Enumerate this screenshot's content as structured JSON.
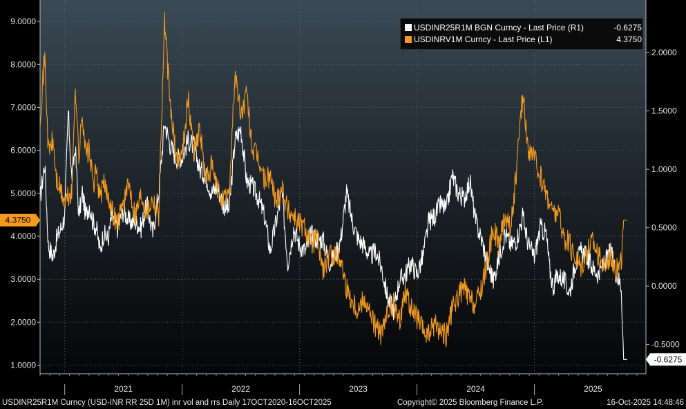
{
  "colors": {
    "white_series": "#ffffff",
    "orange_series": "#f39a1f",
    "grid": "#3a3a3a"
  },
  "legend": {
    "entries": [
      {
        "label": "USDINR25R1M BGN Curncy - Last Price (R1)",
        "value": "-0.6275",
        "color": "#ffffff"
      },
      {
        "label": "USDINRV1M Curncy - Last Price (L1)",
        "value": "4.3750",
        "color": "#f39a1f"
      }
    ]
  },
  "footer": {
    "left": "USDINR25R1M Curncy (USD-INR RR 25D 1M) inr vol and rrs Daily 17OCT2020-16OCT2025",
    "middle": "Copyright© 2025 Bloomberg Finance L.P.",
    "right": "16-Oct-2025 14:48:46"
  },
  "chart_data": {
    "type": "line",
    "title": "USDINR25R1M Curncy (USD-INR RR 25D 1M) inr vol and rrs",
    "date_range": "17OCT2020-16OCT2025",
    "x_years": [
      "2021",
      "2022",
      "2023",
      "2024",
      "2025"
    ],
    "left_axis": {
      "ticks": [
        "1.0000",
        "2.0000",
        "3.0000",
        "4.0000",
        "5.0000",
        "6.0000",
        "7.0000",
        "8.0000",
        "9.0000"
      ],
      "ylim": [
        0.8,
        9.5
      ],
      "last_value_label": "4.3750"
    },
    "right_axis": {
      "ticks": [
        "-0.5000",
        "0.0000",
        "0.5000",
        "1.0000",
        "1.5000",
        "2.0000"
      ],
      "ylim": [
        -0.75,
        2.45
      ],
      "last_value_label": "-0.6275"
    },
    "series": [
      {
        "name": "USDINRV1M Curncy - Last Price (L1)",
        "axis": "left",
        "x": [
          2020.79,
          2020.83,
          2020.86,
          2020.9,
          2020.93,
          2020.97,
          2021.0,
          2021.03,
          2021.06,
          2021.09,
          2021.12,
          2021.15,
          2021.18,
          2021.21,
          2021.24,
          2021.27,
          2021.3,
          2021.33,
          2021.37,
          2021.4,
          2021.45,
          2021.5,
          2021.55,
          2021.6,
          2021.65,
          2021.7,
          2021.75,
          2021.8,
          2021.85,
          2021.9,
          2021.95,
          2022.0,
          2022.05,
          2022.1,
          2022.15,
          2022.2,
          2022.25,
          2022.3,
          2022.35,
          2022.4,
          2022.45,
          2022.5,
          2022.55,
          2022.6,
          2022.65,
          2022.7,
          2022.75,
          2022.8,
          2022.85,
          2022.9,
          2022.95,
          2023.0,
          2023.05,
          2023.1,
          2023.15,
          2023.2,
          2023.25,
          2023.3,
          2023.35,
          2023.4,
          2023.45,
          2023.5,
          2023.55,
          2023.6,
          2023.65,
          2023.7,
          2023.75,
          2023.8,
          2023.85,
          2023.9,
          2023.95,
          2024.0,
          2024.05,
          2024.1,
          2024.15,
          2024.2,
          2024.25,
          2024.3,
          2024.35,
          2024.4,
          2024.45,
          2024.5,
          2024.55,
          2024.6,
          2024.65,
          2024.7,
          2024.75,
          2024.8,
          2024.85,
          2024.9,
          2024.95,
          2025.0,
          2025.05,
          2025.1,
          2025.13,
          2025.16,
          2025.2,
          2025.25,
          2025.3,
          2025.35,
          2025.4,
          2025.45,
          2025.5,
          2025.55,
          2025.6,
          2025.65,
          2025.7,
          2025.74,
          2025.76,
          2025.79
        ],
        "values": [
          6.8,
          8.2,
          6.0,
          6.2,
          5.3,
          5.0,
          4.8,
          4.9,
          5.0,
          7.6,
          5.8,
          6.9,
          5.9,
          6.0,
          5.2,
          5.5,
          4.9,
          5.2,
          5.0,
          4.6,
          4.3,
          4.8,
          5.2,
          4.5,
          5.0,
          4.6,
          4.9,
          4.5,
          9.0,
          7.0,
          5.8,
          5.9,
          7.2,
          6.0,
          6.5,
          5.3,
          5.6,
          5.1,
          4.8,
          5.0,
          7.8,
          6.8,
          7.3,
          6.0,
          5.8,
          5.3,
          5.4,
          4.8,
          5.2,
          4.6,
          4.5,
          4.3,
          4.2,
          3.8,
          4.0,
          3.2,
          3.5,
          3.6,
          3.5,
          2.8,
          2.5,
          2.3,
          2.6,
          2.2,
          1.9,
          1.7,
          2.2,
          2.4,
          2.0,
          2.8,
          2.3,
          2.1,
          1.8,
          1.7,
          2.0,
          1.8,
          1.7,
          2.3,
          2.6,
          2.8,
          2.5,
          2.4,
          2.8,
          3.4,
          4.2,
          3.8,
          4.5,
          4.2,
          5.6,
          7.3,
          6.0,
          5.8,
          5.4,
          5.0,
          4.8,
          4.5,
          4.6,
          4.0,
          3.8,
          3.5,
          3.3,
          3.7,
          3.9,
          3.5,
          3.3,
          3.6,
          3.2,
          3.4,
          4.375,
          4.375
        ]
      },
      {
        "name": "USDINR25R1M BGN Curncy - Last Price (R1)",
        "axis": "right",
        "x": [
          2020.79,
          2020.83,
          2020.86,
          2020.9,
          2020.93,
          2020.97,
          2021.0,
          2021.03,
          2021.06,
          2021.09,
          2021.12,
          2021.15,
          2021.18,
          2021.21,
          2021.24,
          2021.27,
          2021.3,
          2021.33,
          2021.37,
          2021.4,
          2021.45,
          2021.5,
          2021.55,
          2021.6,
          2021.65,
          2021.7,
          2021.75,
          2021.8,
          2021.85,
          2021.9,
          2021.95,
          2022.0,
          2022.05,
          2022.1,
          2022.15,
          2022.2,
          2022.25,
          2022.3,
          2022.35,
          2022.4,
          2022.45,
          2022.5,
          2022.55,
          2022.6,
          2022.65,
          2022.7,
          2022.75,
          2022.8,
          2022.85,
          2022.9,
          2022.95,
          2023.0,
          2023.05,
          2023.1,
          2023.15,
          2023.2,
          2023.25,
          2023.3,
          2023.35,
          2023.4,
          2023.45,
          2023.5,
          2023.55,
          2023.6,
          2023.65,
          2023.7,
          2023.75,
          2023.8,
          2023.85,
          2023.9,
          2023.95,
          2024.0,
          2024.05,
          2024.1,
          2024.15,
          2024.2,
          2024.25,
          2024.3,
          2024.35,
          2024.4,
          2024.45,
          2024.5,
          2024.55,
          2024.6,
          2024.65,
          2024.7,
          2024.75,
          2024.8,
          2024.85,
          2024.9,
          2024.95,
          2025.0,
          2025.05,
          2025.1,
          2025.13,
          2025.16,
          2025.2,
          2025.25,
          2025.3,
          2025.35,
          2025.4,
          2025.45,
          2025.5,
          2025.55,
          2025.6,
          2025.65,
          2025.7,
          2025.74,
          2025.76,
          2025.79
        ],
        "values": [
          0.75,
          1.05,
          0.35,
          0.25,
          0.4,
          0.5,
          0.6,
          1.5,
          0.9,
          1.2,
          0.6,
          0.8,
          0.6,
          0.7,
          0.55,
          0.5,
          0.3,
          0.45,
          0.4,
          0.6,
          0.5,
          0.65,
          0.55,
          0.55,
          0.5,
          0.7,
          0.45,
          0.8,
          1.4,
          1.2,
          1.1,
          1.1,
          1.25,
          1.2,
          1.0,
          0.95,
          0.8,
          0.85,
          0.7,
          0.65,
          1.25,
          1.35,
          0.9,
          0.85,
          0.75,
          0.6,
          0.3,
          0.55,
          0.8,
          0.2,
          0.5,
          0.35,
          0.3,
          0.45,
          0.4,
          0.4,
          0.2,
          0.25,
          0.4,
          0.8,
          0.55,
          0.4,
          0.35,
          0.25,
          0.3,
          0.15,
          -0.1,
          -0.2,
          0.05,
          0.1,
          0.2,
          0.1,
          0.25,
          0.55,
          0.6,
          0.7,
          0.65,
          0.95,
          0.8,
          0.75,
          0.9,
          0.55,
          0.4,
          0.2,
          0.05,
          0.25,
          0.45,
          0.35,
          0.4,
          0.6,
          0.35,
          0.25,
          0.5,
          0.45,
          0.15,
          0.0,
          0.1,
          0.05,
          -0.05,
          0.2,
          0.3,
          0.25,
          0.15,
          0.1,
          0.2,
          0.3,
          0.1,
          0.0,
          -0.6275,
          -0.6275
        ]
      }
    ]
  }
}
